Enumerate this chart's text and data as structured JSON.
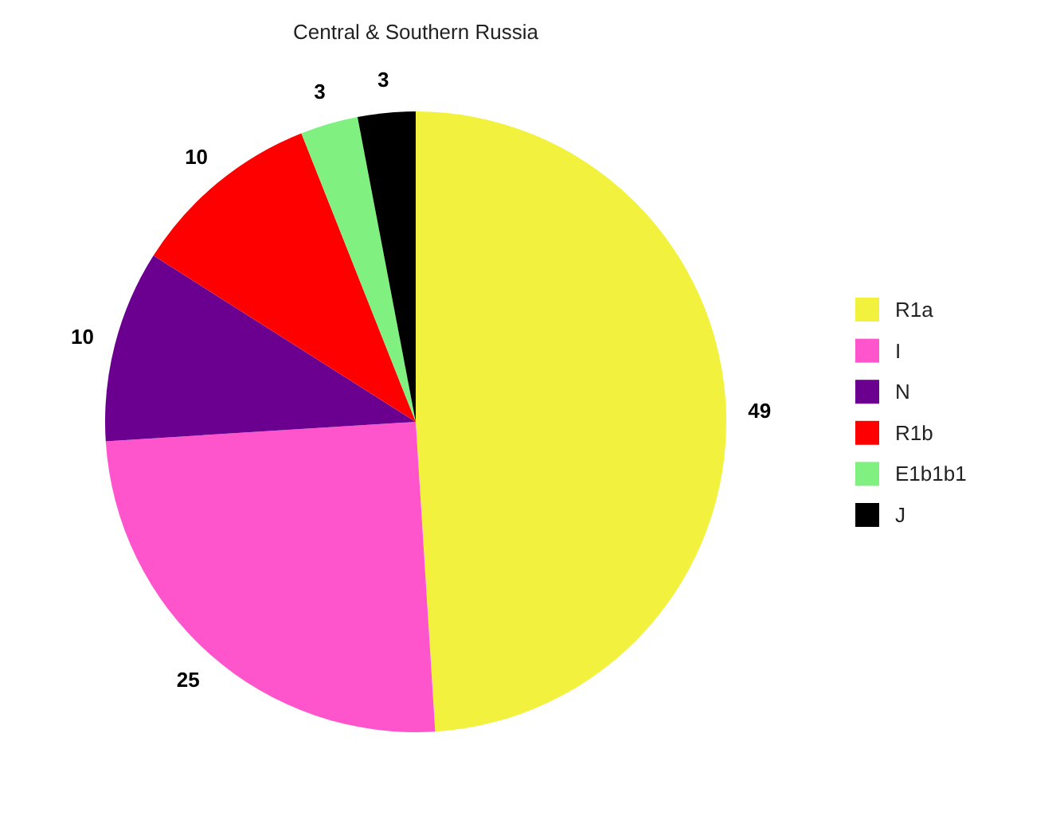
{
  "chart_data": {
    "type": "pie",
    "title": "Central & Southern Russia",
    "categories": [
      "R1a",
      "I",
      "N",
      "R1b",
      "E1b1b1",
      "J"
    ],
    "values": [
      49,
      25,
      10,
      10,
      3,
      3
    ],
    "colors": [
      "#f2f23e",
      "#ff55cc",
      "#6b0090",
      "#ff0000",
      "#80f080",
      "#000000"
    ],
    "data_labels": true,
    "legend": "right"
  }
}
